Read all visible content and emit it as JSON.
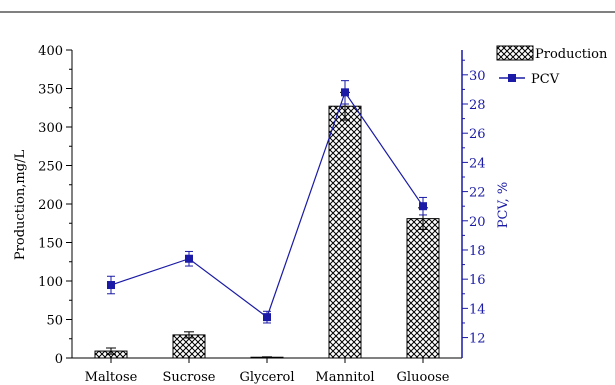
{
  "chart_data": {
    "type": "bar",
    "categories": [
      "Maltose",
      "Sucrose",
      "Glycerol",
      "Mannitol",
      "Gluoose"
    ],
    "series": [
      {
        "name": "Production",
        "type": "bar",
        "axis": "left",
        "values": [
          9,
          30,
          1,
          327,
          181
        ],
        "errors": [
          4,
          4,
          0.5,
          18,
          14
        ]
      },
      {
        "name": "PCV",
        "type": "line",
        "axis": "right",
        "values": [
          15.6,
          17.4,
          13.4,
          28.8,
          21.0
        ],
        "errors": [
          0.6,
          0.5,
          0.4,
          0.8,
          0.6
        ]
      }
    ],
    "ylabel": "Production,mg/L",
    "ylim": [
      0,
      400
    ],
    "yticks": [
      0,
      50,
      100,
      150,
      200,
      250,
      300,
      350,
      400
    ],
    "y2label": "PCV, %",
    "y2lim": [
      10.6,
      31.7
    ],
    "y2ticks": [
      12,
      14,
      16,
      18,
      20,
      22,
      24,
      26,
      28,
      30
    ],
    "legend_position": "top-right",
    "grid": false,
    "colors": {
      "line": "#1a1aa6",
      "bar_fill_pattern": "crosshatch",
      "axis_left": "#000000",
      "axis_right": "#1a1aa6"
    }
  }
}
